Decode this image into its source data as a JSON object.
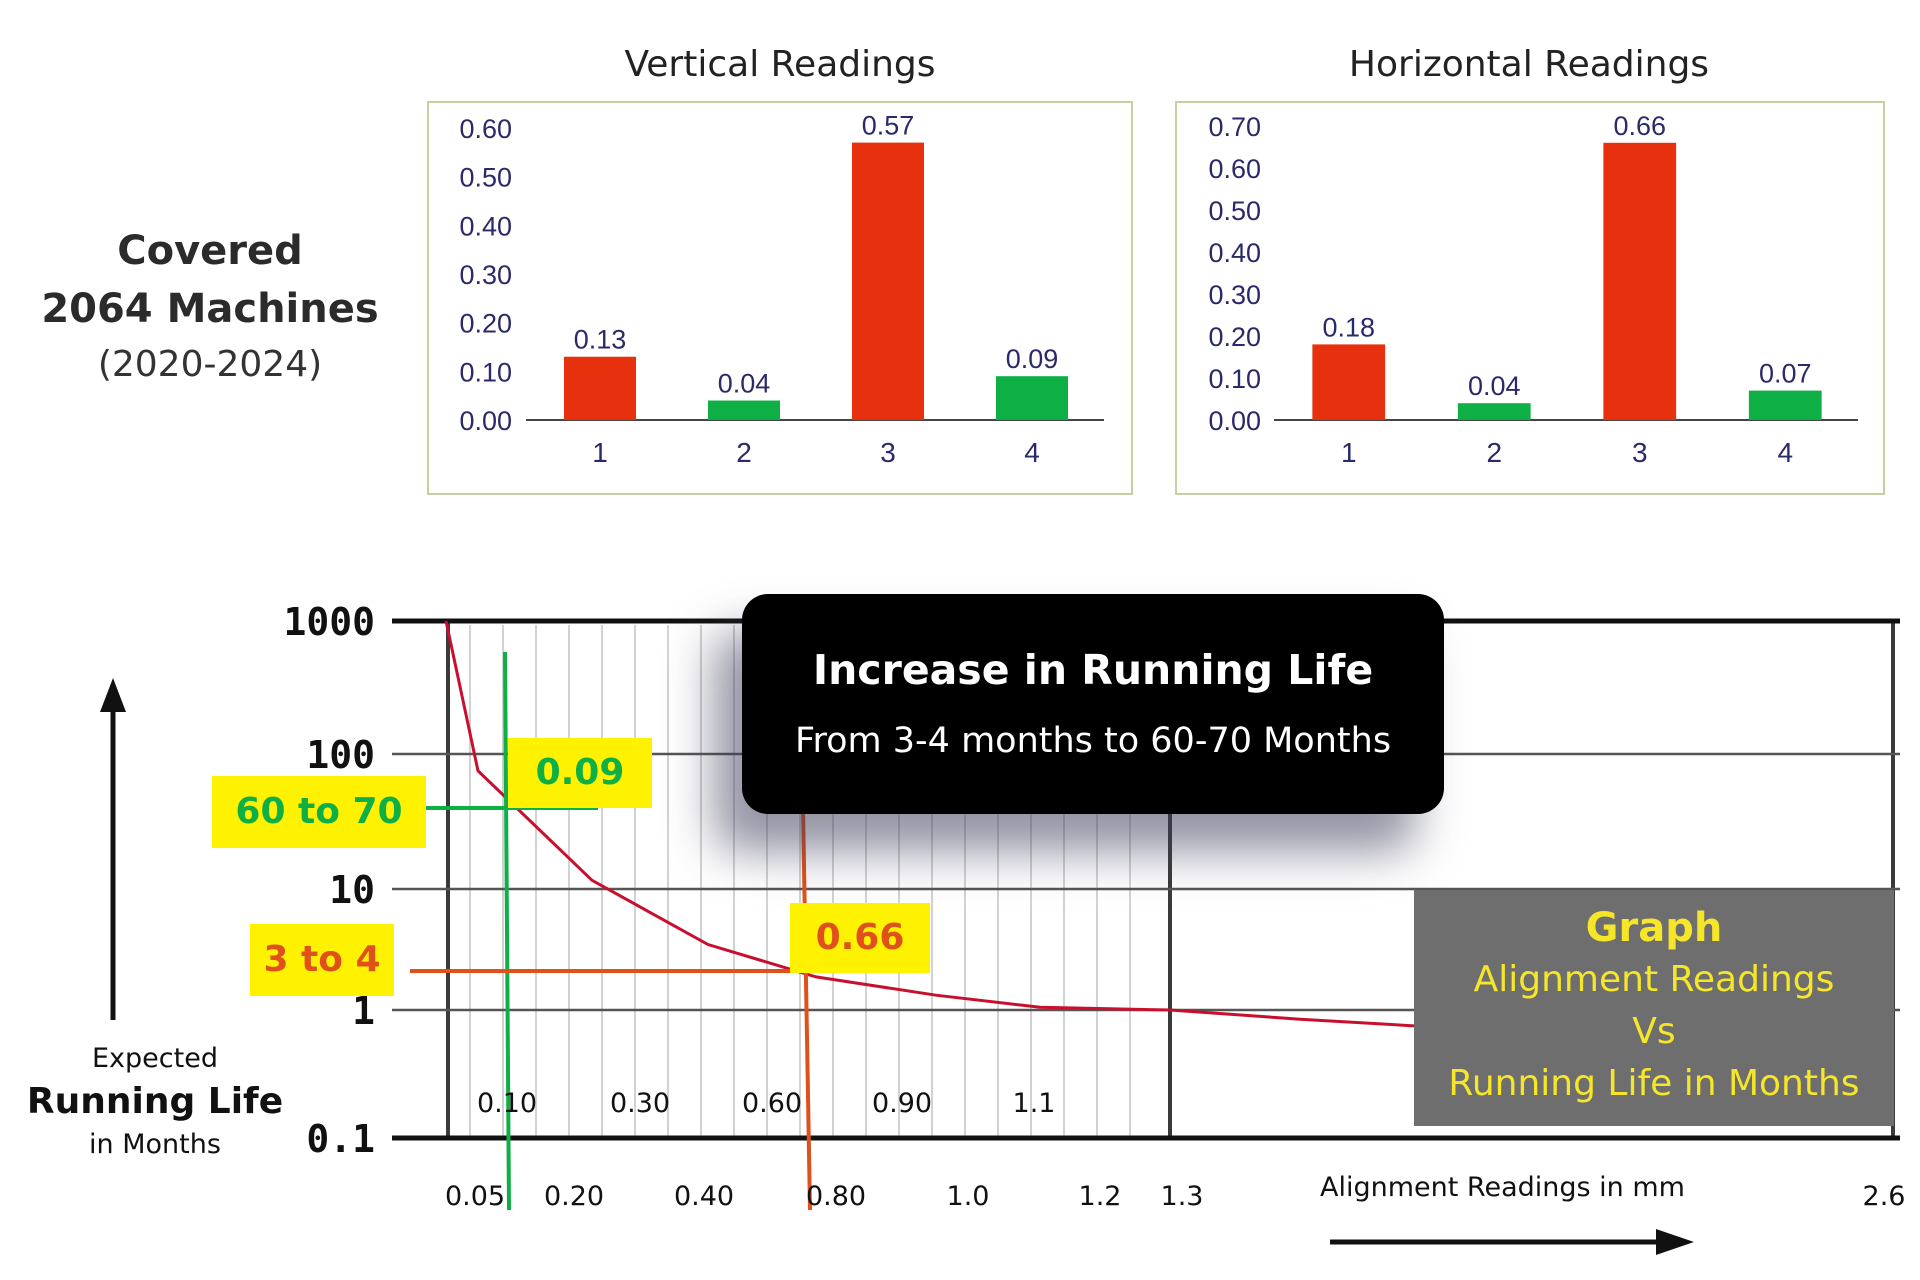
{
  "summary": {
    "line1": "Covered",
    "line2": "2064 Machines",
    "line3": "(2020-2024)"
  },
  "chart_data": [
    {
      "type": "bar",
      "title": "Vertical Readings",
      "categories": [
        "1",
        "2",
        "3",
        "4"
      ],
      "values": [
        0.13,
        0.04,
        0.57,
        0.09
      ],
      "value_labels": [
        "0.13",
        "0.04",
        "0.57",
        "0.09"
      ],
      "ylim": [
        0,
        0.6
      ],
      "yticks": [
        "0.60",
        "0.50",
        "0.40",
        "0.30",
        "0.20",
        "0.10",
        "0.00"
      ],
      "bar_colors": [
        "#e6300e",
        "#0eaf45",
        "#e6300e",
        "#0eaf45"
      ]
    },
    {
      "type": "bar",
      "title": "Horizontal Readings",
      "categories": [
        "1",
        "2",
        "3",
        "4"
      ],
      "values": [
        0.18,
        0.04,
        0.66,
        0.07
      ],
      "value_labels": [
        "0.18",
        "0.04",
        "0.66",
        "0.07"
      ],
      "ylim": [
        0,
        0.7
      ],
      "yticks": [
        "0.70",
        "0.60",
        "0.50",
        "0.40",
        "0.30",
        "0.20",
        "0.10",
        "0.00"
      ],
      "bar_colors": [
        "#e6300e",
        "#0eaf45",
        "#e6300e",
        "#0eaf45"
      ]
    },
    {
      "type": "line",
      "xlabel": "Alignment Readings in mm",
      "ylabel_lines": [
        "Expected",
        "Running Life",
        "in Months"
      ],
      "yscale": "log",
      "yticks": [
        "1000",
        "100",
        "10",
        "1",
        "0.1"
      ],
      "xticks_lower": [
        "0.05",
        "0.20",
        "0.40",
        "0.80",
        "1.0",
        "1.2",
        "1.3",
        "2.6"
      ],
      "xticks_upper": [
        "0.10",
        "0.30",
        "0.60",
        "0.90",
        "1.1"
      ],
      "curve": {
        "color": "#c8102e",
        "points": [
          [
            0.0,
            1000
          ],
          [
            0.05,
            70
          ],
          [
            0.2,
            10
          ],
          [
            0.4,
            3.2
          ],
          [
            0.6,
            1.8
          ],
          [
            0.9,
            1.3
          ],
          [
            1.1,
            1.05
          ],
          [
            1.3,
            1.0
          ],
          [
            1.5,
            0.85
          ],
          [
            1.7,
            0.75
          ]
        ]
      },
      "markers": [
        {
          "reading": "0.09",
          "life": "60 to 70",
          "color": "#0eaf45"
        },
        {
          "reading": "0.66",
          "life": "3 to 4",
          "color": "#e0501a"
        }
      ]
    }
  ],
  "callout": {
    "title": "Increase in Running Life",
    "subtitle": "From 3-4 months to 60-70 Months"
  },
  "graph_box": {
    "line1": "Graph",
    "line2": "Alignment Readings",
    "line3": "Vs",
    "line4": "Running Life in Months"
  }
}
